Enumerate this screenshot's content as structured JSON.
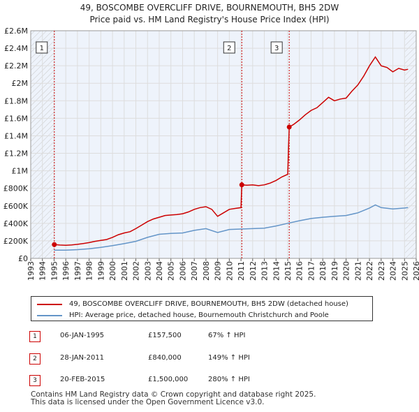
{
  "title_line1": "49, BOSCOMBE OVERCLIFF DRIVE, BOURNEMOUTH, BH5 2DW",
  "title_line2": "Price paid vs. HM Land Registry's House Price Index (HPI)",
  "colors": {
    "property": "#cc0000",
    "hpi": "#6495c8",
    "marker": "#cc0000",
    "grid": "#dddddd",
    "plot_bg": "#eef3fb"
  },
  "chart_data": {
    "type": "line",
    "xlim": [
      1993,
      2026
    ],
    "ylim": [
      0,
      2600000
    ],
    "yticks": [
      {
        "value": 0,
        "label": "£0"
      },
      {
        "value": 200000,
        "label": "£200K"
      },
      {
        "value": 400000,
        "label": "£400K"
      },
      {
        "value": 600000,
        "label": "£600K"
      },
      {
        "value": 800000,
        "label": "£800K"
      },
      {
        "value": 1000000,
        "label": "£1M"
      },
      {
        "value": 1200000,
        "label": "£1.2M"
      },
      {
        "value": 1400000,
        "label": "£1.4M"
      },
      {
        "value": 1600000,
        "label": "£1.6M"
      },
      {
        "value": 1800000,
        "label": "£1.8M"
      },
      {
        "value": 2000000,
        "label": "£2M"
      },
      {
        "value": 2200000,
        "label": "£2.2M"
      },
      {
        "value": 2400000,
        "label": "£2.4M"
      },
      {
        "value": 2600000,
        "label": "£2.6M"
      }
    ],
    "xticks": [
      "1993",
      "1994",
      "1995",
      "1996",
      "1997",
      "1998",
      "1999",
      "2000",
      "2001",
      "2002",
      "2003",
      "2004",
      "2005",
      "2006",
      "2007",
      "2008",
      "2009",
      "2010",
      "2011",
      "2012",
      "2013",
      "2014",
      "2015",
      "2016",
      "2017",
      "2018",
      "2019",
      "2020",
      "2021",
      "2022",
      "2023",
      "2024",
      "2025",
      "2026"
    ],
    "hatched_before": 1995.02,
    "hatched_after": 2025.05,
    "series": [
      {
        "name": "49, BOSCOMBE OVERCLIFF DRIVE, BOURNEMOUTH, BH5 2DW (detached house)",
        "color": "#cc0000",
        "points": [
          [
            1995.02,
            157500
          ],
          [
            1995.5,
            152000
          ],
          [
            1996,
            150000
          ],
          [
            1996.5,
            153000
          ],
          [
            1997,
            160000
          ],
          [
            1997.5,
            170000
          ],
          [
            1998,
            180000
          ],
          [
            1998.5,
            195000
          ],
          [
            1999,
            205000
          ],
          [
            1999.5,
            215000
          ],
          [
            2000,
            240000
          ],
          [
            2000.5,
            270000
          ],
          [
            2001,
            290000
          ],
          [
            2001.5,
            305000
          ],
          [
            2002,
            340000
          ],
          [
            2002.5,
            380000
          ],
          [
            2003,
            420000
          ],
          [
            2003.5,
            450000
          ],
          [
            2004,
            470000
          ],
          [
            2004.5,
            490000
          ],
          [
            2005,
            495000
          ],
          [
            2005.5,
            500000
          ],
          [
            2006,
            510000
          ],
          [
            2006.5,
            530000
          ],
          [
            2007,
            560000
          ],
          [
            2007.5,
            580000
          ],
          [
            2008,
            590000
          ],
          [
            2008.5,
            560000
          ],
          [
            2009,
            480000
          ],
          [
            2009.5,
            520000
          ],
          [
            2010,
            560000
          ],
          [
            2010.5,
            570000
          ],
          [
            2011.0,
            580000
          ],
          [
            2011.07,
            840000
          ],
          [
            2011.5,
            835000
          ],
          [
            2012,
            840000
          ],
          [
            2012.5,
            830000
          ],
          [
            2013,
            840000
          ],
          [
            2013.5,
            860000
          ],
          [
            2014,
            890000
          ],
          [
            2014.5,
            930000
          ],
          [
            2015.0,
            960000
          ],
          [
            2015.13,
            1500000
          ],
          [
            2015.5,
            1530000
          ],
          [
            2016,
            1580000
          ],
          [
            2016.5,
            1640000
          ],
          [
            2017,
            1690000
          ],
          [
            2017.5,
            1720000
          ],
          [
            2018,
            1780000
          ],
          [
            2018.5,
            1840000
          ],
          [
            2019,
            1800000
          ],
          [
            2019.5,
            1820000
          ],
          [
            2020,
            1830000
          ],
          [
            2020.5,
            1910000
          ],
          [
            2021,
            1980000
          ],
          [
            2021.5,
            2080000
          ],
          [
            2022,
            2200000
          ],
          [
            2022.5,
            2300000
          ],
          [
            2023,
            2200000
          ],
          [
            2023.5,
            2180000
          ],
          [
            2024,
            2130000
          ],
          [
            2024.5,
            2170000
          ],
          [
            2025,
            2150000
          ],
          [
            2025.3,
            2160000
          ]
        ]
      },
      {
        "name": "HPI: Average price, detached house, Bournemouth Christchurch and Poole",
        "color": "#6495c8",
        "points": [
          [
            1995,
            93000
          ],
          [
            1996,
            94000
          ],
          [
            1997,
            100000
          ],
          [
            1998,
            110000
          ],
          [
            1999,
            125000
          ],
          [
            2000,
            145000
          ],
          [
            2001,
            168000
          ],
          [
            2002,
            195000
          ],
          [
            2003,
            240000
          ],
          [
            2004,
            275000
          ],
          [
            2005,
            285000
          ],
          [
            2006,
            290000
          ],
          [
            2007,
            320000
          ],
          [
            2008,
            340000
          ],
          [
            2009,
            295000
          ],
          [
            2010,
            330000
          ],
          [
            2011,
            335000
          ],
          [
            2012,
            340000
          ],
          [
            2013,
            345000
          ],
          [
            2014,
            370000
          ],
          [
            2015,
            400000
          ],
          [
            2016,
            430000
          ],
          [
            2017,
            455000
          ],
          [
            2018,
            470000
          ],
          [
            2019,
            480000
          ],
          [
            2020,
            490000
          ],
          [
            2021,
            520000
          ],
          [
            2022,
            575000
          ],
          [
            2022.5,
            610000
          ],
          [
            2023,
            580000
          ],
          [
            2024,
            565000
          ],
          [
            2025,
            575000
          ],
          [
            2025.3,
            580000
          ]
        ]
      }
    ],
    "sales": [
      {
        "label": "1",
        "x": 1995.02,
        "y": 157500
      },
      {
        "label": "2",
        "x": 2011.07,
        "y": 840000
      },
      {
        "label": "3",
        "x": 2015.13,
        "y": 1500000
      }
    ]
  },
  "legend": {
    "property_label": "49, BOSCOMBE OVERCLIFF DRIVE, BOURNEMOUTH, BH5 2DW (detached house)",
    "hpi_label": "HPI: Average price, detached house, Bournemouth Christchurch and Poole"
  },
  "sales_table": [
    {
      "num": "1",
      "date": "06-JAN-1995",
      "price": "£157,500",
      "hpi": "67% ↑ HPI"
    },
    {
      "num": "2",
      "date": "28-JAN-2011",
      "price": "£840,000",
      "hpi": "149% ↑ HPI"
    },
    {
      "num": "3",
      "date": "20-FEB-2015",
      "price": "£1,500,000",
      "hpi": "280% ↑ HPI"
    }
  ],
  "footer_line1": "Contains HM Land Registry data © Crown copyright and database right 2025.",
  "footer_line2": "This data is licensed under the Open Government Licence v3.0."
}
